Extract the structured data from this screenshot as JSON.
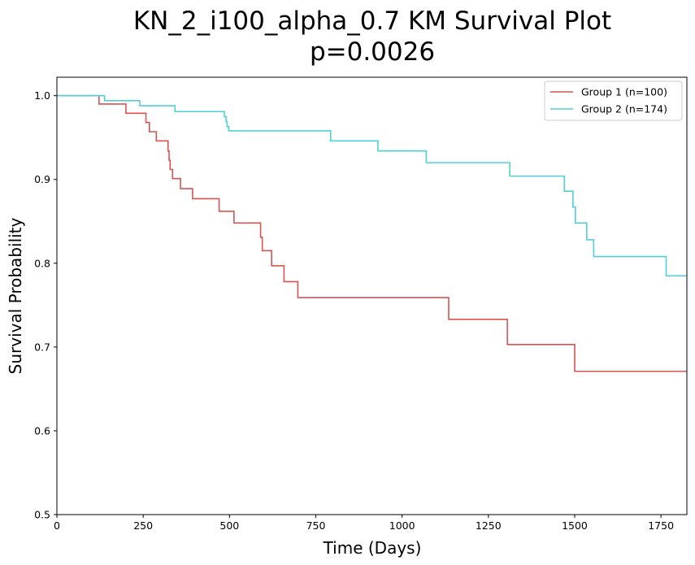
{
  "chart_data": {
    "type": "line",
    "step": "post",
    "title": "KN_2_i100_alpha_0.7 KM Survival Plot",
    "subtitle": "p=0.0026",
    "xlabel": "Time (Days)",
    "ylabel": "Survival Probability",
    "xlim": [
      0,
      1825
    ],
    "ylim": [
      0.5,
      1.022
    ],
    "xticks": [
      0,
      250,
      500,
      750,
      1000,
      1250,
      1500,
      1750
    ],
    "yticks": [
      0.5,
      0.6,
      0.7,
      0.8,
      0.9,
      1.0
    ],
    "xtick_labels": [
      "0",
      "250",
      "500",
      "750",
      "1000",
      "1250",
      "1500",
      "1750"
    ],
    "ytick_labels": [
      "0.5",
      "0.6",
      "0.7",
      "0.8",
      "0.9",
      "1.0"
    ],
    "grid": false,
    "legend_position": "top-right",
    "series": [
      {
        "name": "Group 1 (n=100)",
        "color": "#d9534f",
        "x": [
          0,
          122,
          200,
          258,
          268,
          288,
          322,
          325,
          328,
          335,
          358,
          393,
          470,
          513,
          590,
          595,
          600,
          622,
          658,
          698,
          1135,
          1305,
          1500,
          1825
        ],
        "y": [
          1.0,
          0.99,
          0.979,
          0.968,
          0.957,
          0.946,
          0.934,
          0.923,
          0.912,
          0.901,
          0.889,
          0.877,
          0.862,
          0.848,
          0.831,
          0.815,
          0.815,
          0.797,
          0.778,
          0.759,
          0.733,
          0.703,
          0.671,
          0.671
        ]
      },
      {
        "name": "Group 2 (n=174)",
        "color": "#4fd0d9",
        "x": [
          0,
          138,
          240,
          342,
          485,
          490,
          493,
          498,
          793,
          930,
          1070,
          1312,
          1470,
          1495,
          1502,
          1535,
          1555,
          1765,
          1825
        ],
        "y": [
          1.0,
          0.994,
          0.988,
          0.981,
          0.975,
          0.969,
          0.963,
          0.958,
          0.946,
          0.934,
          0.92,
          0.904,
          0.886,
          0.867,
          0.848,
          0.828,
          0.808,
          0.785,
          0.785
        ]
      }
    ]
  }
}
